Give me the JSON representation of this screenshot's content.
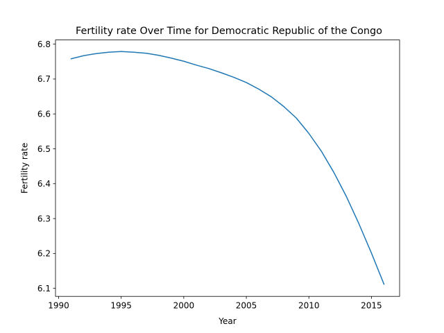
{
  "chart_data": {
    "type": "line",
    "title": "Fertility rate Over Time for Democratic Republic of the Congo",
    "xlabel": "Year",
    "ylabel": "Fertility rate",
    "xlim": [
      1989.75,
      2017.25
    ],
    "ylim": [
      6.077,
      6.812
    ],
    "x_ticks": [
      1990,
      1995,
      2000,
      2005,
      2010,
      2015
    ],
    "y_ticks": [
      6.1,
      6.2,
      6.3,
      6.4,
      6.5,
      6.6,
      6.7,
      6.8
    ],
    "x_tick_labels": [
      "1990",
      "1995",
      "2000",
      "2005",
      "2010",
      "2015"
    ],
    "y_tick_labels": [
      "6.1",
      "6.2",
      "6.3",
      "6.4",
      "6.5",
      "6.6",
      "6.7",
      "6.8"
    ],
    "grid": false,
    "line_color": "#1f77b4",
    "series": [
      {
        "x": [
          1991,
          1992,
          1993,
          1994,
          1995,
          1996,
          1997,
          1998,
          1999,
          2000,
          2001,
          2002,
          2003,
          2004,
          2005,
          2006,
          2007,
          2008,
          2009,
          2010,
          2011,
          2012,
          2013,
          2014,
          2015,
          2016
        ],
        "values": [
          6.758,
          6.767,
          6.773,
          6.777,
          6.779,
          6.777,
          6.774,
          6.768,
          6.76,
          6.751,
          6.74,
          6.73,
          6.718,
          6.705,
          6.69,
          6.671,
          6.649,
          6.621,
          6.588,
          6.544,
          6.493,
          6.432,
          6.363,
          6.285,
          6.201,
          6.112
        ]
      }
    ]
  }
}
